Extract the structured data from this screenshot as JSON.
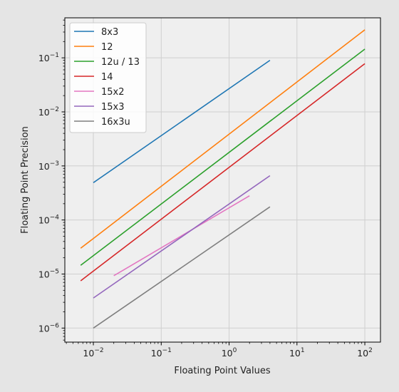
{
  "chart_data": {
    "type": "line",
    "xscale": "log",
    "yscale": "log",
    "xlabel": "Floating Point Values",
    "ylabel": "Floating Point Precision",
    "xlim": [
      0.0038,
      170
    ],
    "ylim": [
      5.5e-07,
      0.55
    ],
    "grid": true,
    "legend_position": "top-left",
    "x_ticks": [
      {
        "value": 0.01,
        "base": "10",
        "exp": "−2"
      },
      {
        "value": 0.1,
        "base": "10",
        "exp": "−1"
      },
      {
        "value": 1,
        "base": "10",
        "exp": "0"
      },
      {
        "value": 10,
        "base": "10",
        "exp": "1"
      },
      {
        "value": 100,
        "base": "10",
        "exp": "2"
      }
    ],
    "y_ticks": [
      {
        "value": 1e-06,
        "base": "10",
        "exp": "−6"
      },
      {
        "value": 1e-05,
        "base": "10",
        "exp": "−5"
      },
      {
        "value": 0.0001,
        "base": "10",
        "exp": "−4"
      },
      {
        "value": 0.001,
        "base": "10",
        "exp": "−3"
      },
      {
        "value": 0.01,
        "base": "10",
        "exp": "−2"
      },
      {
        "value": 0.1,
        "base": "10",
        "exp": "−1"
      }
    ],
    "series": [
      {
        "name": "8x3",
        "color": "#1f77b4",
        "x": [
          0.01,
          4
        ],
        "y": [
          0.00049,
          0.09
        ]
      },
      {
        "name": "12",
        "color": "#ff7f0e",
        "x": [
          0.0065,
          100
        ],
        "y": [
          3e-05,
          0.33
        ]
      },
      {
        "name": "12u / 13",
        "color": "#2ca02c",
        "x": [
          0.0065,
          100
        ],
        "y": [
          1.45e-05,
          0.145
        ]
      },
      {
        "name": "14",
        "color": "#d62728",
        "x": [
          0.0065,
          100
        ],
        "y": [
          7.5e-06,
          0.078
        ]
      },
      {
        "name": "15x2",
        "color": "#e377c2",
        "x": [
          0.02,
          2
        ],
        "y": [
          9.3e-06,
          0.00028
        ]
      },
      {
        "name": "15x3",
        "color": "#9467bd",
        "x": [
          0.01,
          4
        ],
        "y": [
          3.6e-06,
          0.00066
        ]
      },
      {
        "name": "16x3u",
        "color": "#7f7f7f",
        "x": [
          0.01,
          4
        ],
        "y": [
          1e-06,
          0.000175
        ]
      }
    ]
  }
}
